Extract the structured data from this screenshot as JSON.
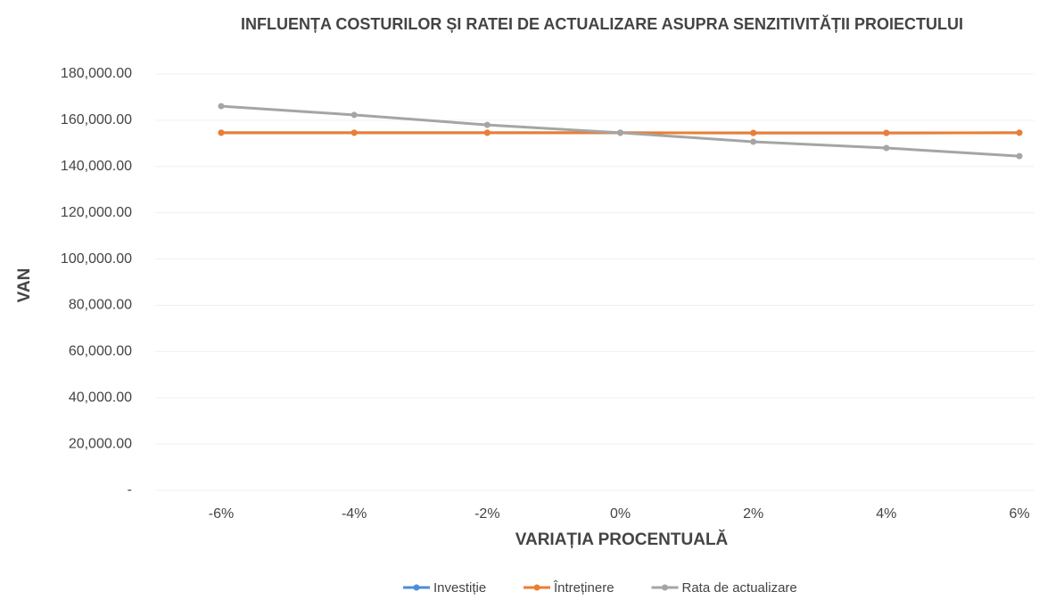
{
  "chart_data": {
    "type": "line",
    "title": "INFLUENȚA COSTURILOR ȘI RATEI DE ACTUALIZARE ASUPRA SENZITIVITĂȚII PROIECTULUI",
    "x_label": "VARIAȚIA PROCENTUALĂ",
    "y_label": "VAN",
    "categories": [
      "-6%",
      "-4%",
      "-2%",
      "0%",
      "2%",
      "4%",
      "6%"
    ],
    "series": [
      {
        "name": "Investiție",
        "color": "#4a8fd8",
        "values": [
          154600,
          154600,
          154600,
          154600,
          154500,
          154500,
          154600
        ]
      },
      {
        "name": "Întreținere",
        "color": "#ed7d31",
        "values": [
          154600,
          154600,
          154600,
          154600,
          154500,
          154500,
          154600
        ]
      },
      {
        "name": "Rata de actualizare",
        "color": "#a5a5a5",
        "values": [
          166100,
          162300,
          158000,
          154600,
          150700,
          148000,
          144500
        ]
      }
    ],
    "ylim": [
      0,
      180000
    ],
    "yticks": [
      {
        "value": 0,
        "label": "-"
      },
      {
        "value": 20000,
        "label": "20,000.00"
      },
      {
        "value": 40000,
        "label": "40,000.00"
      },
      {
        "value": 60000,
        "label": "60,000.00"
      },
      {
        "value": 80000,
        "label": "80,000.00"
      },
      {
        "value": 100000,
        "label": "100,000.00"
      },
      {
        "value": 120000,
        "label": "120,000.00"
      },
      {
        "value": 140000,
        "label": "140,000.00"
      },
      {
        "value": 160000,
        "label": "160,000.00"
      },
      {
        "value": 180000,
        "label": "180,000.00"
      }
    ],
    "grid": true,
    "legend": "bottom"
  }
}
